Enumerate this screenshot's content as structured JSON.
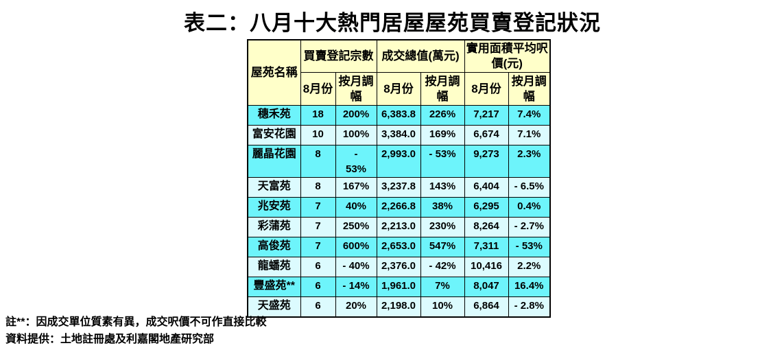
{
  "title": "表二：八月十大熱門居屋屋苑買賣登記狀況",
  "chart_data": {
    "type": "table",
    "title": "表二：八月十大熱門居屋屋苑買賣登記狀況",
    "corner_header": "屋苑名稱",
    "group_headers": [
      "買賣登記宗數",
      "成交總值(萬元)",
      "實用面積平均呎價(元)"
    ],
    "sub_headers": [
      "8月份",
      "按月調幅",
      "8月份",
      "按月調幅",
      "8月份",
      "按月調幅"
    ],
    "rows": [
      {
        "name": "穗禾苑",
        "values": [
          "18",
          "200%",
          "6,383.8",
          "226%",
          "7,217",
          "7.4%"
        ]
      },
      {
        "name": "富安花園",
        "values": [
          "10",
          "100%",
          "3,384.0",
          "169%",
          "6,674",
          "7.1%"
        ]
      },
      {
        "name": "麗晶花園",
        "values": [
          "8",
          "-\n53%",
          "2,993.0",
          "- 53%",
          "9,273",
          "2.3%"
        ]
      },
      {
        "name": "天富苑",
        "values": [
          "8",
          "167%",
          "3,237.8",
          "143%",
          "6,404",
          "- 6.5%"
        ]
      },
      {
        "name": "兆安苑",
        "values": [
          "7",
          "40%",
          "2,266.8",
          "38%",
          "6,295",
          "0.4%"
        ]
      },
      {
        "name": "彩蒲苑",
        "values": [
          "7",
          "250%",
          "2,213.0",
          "230%",
          "8,264",
          "- 2.7%"
        ]
      },
      {
        "name": "高俊苑",
        "values": [
          "7",
          "600%",
          "2,653.0",
          "547%",
          "7,311",
          "- 53%"
        ]
      },
      {
        "name": "龍蟠苑",
        "values": [
          "6",
          "- 40%",
          "2,376.0",
          "- 42%",
          "10,416",
          "2.2%"
        ]
      },
      {
        "name": "豐盛苑**",
        "values": [
          "6",
          "- 14%",
          "1,961.0",
          "7%",
          "8,047",
          "16.4%"
        ]
      },
      {
        "name": "天盛苑",
        "values": [
          "6",
          "20%",
          "2,198.0",
          "10%",
          "6,864",
          "- 2.8%"
        ]
      }
    ],
    "notes": [
      "註**：因成交單位質素有異，成交呎價不可作直接比較",
      "資料提供：土地註冊處及利嘉閣地產研究部"
    ]
  },
  "colors": {
    "header_bg": "#FFFFC9",
    "row_odd_bg": "#6DF4FB",
    "row_even_bg": "#DCFBFE",
    "border": "#000000"
  }
}
